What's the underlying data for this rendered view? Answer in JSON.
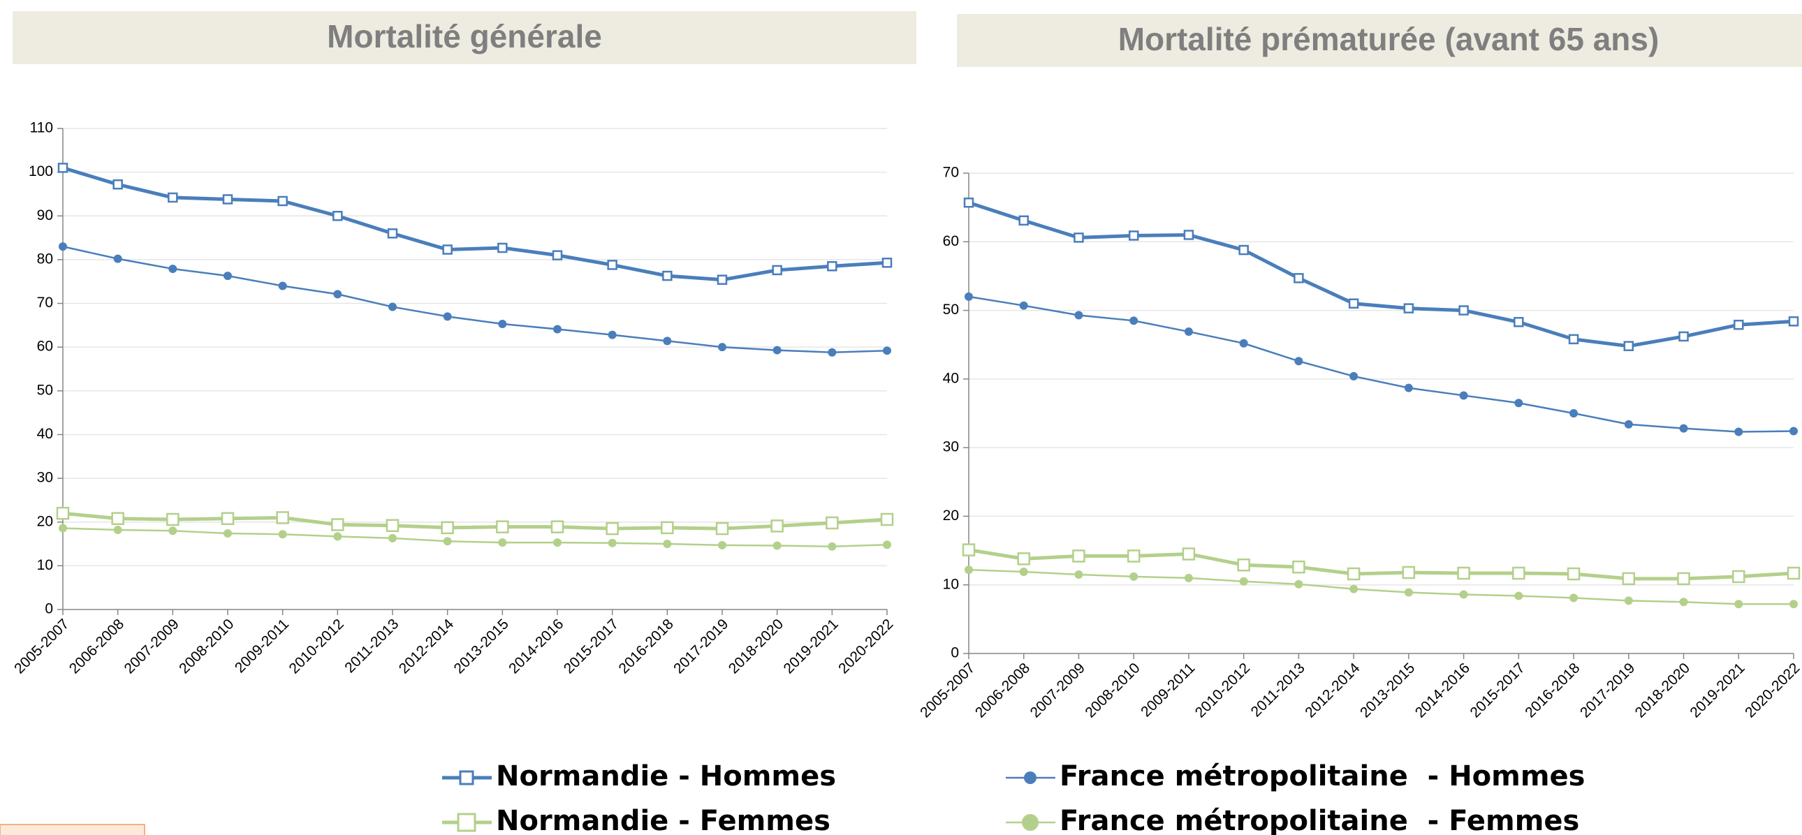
{
  "chart_data": [
    {
      "type": "line",
      "title": "Mortalité générale",
      "categories": [
        "2005-2007",
        "2006-2008",
        "2007-2009",
        "2008-2010",
        "2009-2011",
        "2010-2012",
        "2011-2013",
        "2012-2014",
        "2013-2015",
        "2014-2016",
        "2015-2017",
        "2016-2018",
        "2017-2019",
        "2018-2020",
        "2019-2021",
        "2020-2022"
      ],
      "ylim": [
        0,
        110
      ],
      "yticks": [
        0,
        10,
        20,
        30,
        40,
        50,
        60,
        70,
        80,
        90,
        100,
        110
      ],
      "grid": true,
      "series": [
        {
          "name": "Normandie - Hommes",
          "color": "#4a7ebb",
          "marker": "square",
          "values": [
            101,
            97.2,
            94.2,
            93.8,
            93.4,
            90,
            86,
            82.3,
            82.7,
            81,
            78.8,
            76.3,
            75.4,
            77.6,
            78.5,
            79.3
          ]
        },
        {
          "name": "France métropolitaine  - Hommes",
          "color": "#4a7ebb",
          "marker": "circle",
          "values": [
            83,
            80.2,
            77.9,
            76.3,
            74,
            72.1,
            69.2,
            67,
            65.3,
            64.1,
            62.8,
            61.4,
            60,
            59.3,
            58.8,
            59.2
          ]
        },
        {
          "name": "Normandie - Femmes",
          "color": "#b3d08b",
          "marker": "square",
          "values": [
            22,
            20.8,
            20.6,
            20.8,
            21,
            19.4,
            19.2,
            18.7,
            18.9,
            18.9,
            18.5,
            18.7,
            18.5,
            19.1,
            19.8,
            20.6
          ]
        },
        {
          "name": "France métropolitaine  - Femmes",
          "color": "#b3d08b",
          "marker": "circle",
          "values": [
            18.6,
            18.2,
            18,
            17.4,
            17.2,
            16.7,
            16.3,
            15.6,
            15.3,
            15.3,
            15.2,
            15,
            14.7,
            14.6,
            14.4,
            14.8
          ]
        }
      ]
    },
    {
      "type": "line",
      "title": "Mortalité prématurée (avant 65 ans)",
      "categories": [
        "2005-2007",
        "2006-2008",
        "2007-2009",
        "2008-2010",
        "2009-2011",
        "2010-2012",
        "2011-2013",
        "2012-2014",
        "2013-2015",
        "2014-2016",
        "2015-2017",
        "2016-2018",
        "2017-2019",
        "2018-2020",
        "2019-2021",
        "2020-2022"
      ],
      "ylim": [
        0,
        70
      ],
      "yticks": [
        0,
        10,
        20,
        30,
        40,
        50,
        60,
        70
      ],
      "grid": true,
      "series": [
        {
          "color": "#4a7ebb",
          "marker": "square",
          "values": [
            65.7,
            63.1,
            60.6,
            60.9,
            61,
            58.8,
            54.7,
            51,
            50.3,
            50,
            48.3,
            45.8,
            44.8,
            46.2,
            47.9,
            48.4
          ]
        },
        {
          "color": "#4a7ebb",
          "marker": "circle",
          "values": [
            52,
            50.7,
            49.3,
            48.5,
            46.9,
            45.2,
            42.6,
            40.4,
            38.7,
            37.6,
            36.5,
            35,
            33.4,
            32.8,
            32.3,
            32.4
          ]
        },
        {
          "color": "#b3d08b",
          "marker": "square",
          "values": [
            15.1,
            13.8,
            14.2,
            14.2,
            14.5,
            12.9,
            12.6,
            11.6,
            11.8,
            11.7,
            11.7,
            11.6,
            10.9,
            10.9,
            11.2,
            11.7
          ]
        },
        {
          "color": "#b3d08b",
          "marker": "circle",
          "values": [
            12.2,
            11.9,
            11.5,
            11.2,
            11,
            10.5,
            10.1,
            9.4,
            8.9,
            8.6,
            8.4,
            8.1,
            7.7,
            7.5,
            7.2,
            7.2
          ]
        }
      ]
    }
  ]
}
